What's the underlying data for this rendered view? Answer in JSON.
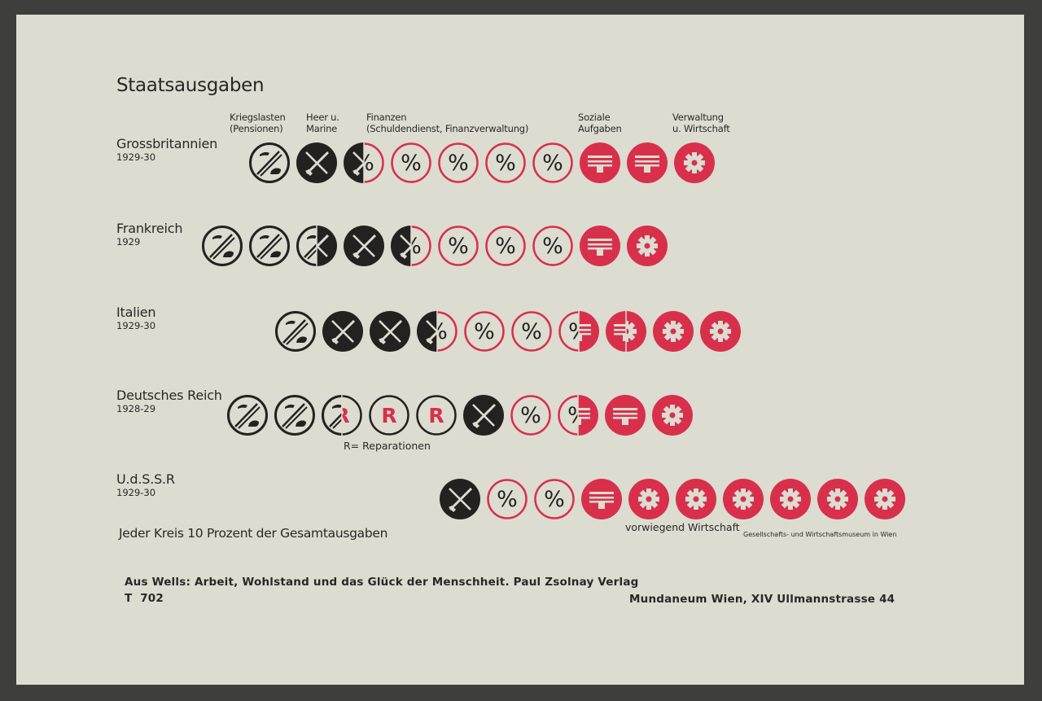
{
  "colors": {
    "black": "#232220",
    "red": "#d8304b",
    "paper": "#dcdcd1"
  },
  "chart_data": {
    "type": "pictogram",
    "title": "Staatsausgaben",
    "unit_note": "Jeder Kreis 10 Prozent der Gesamtausgaben",
    "categories": [
      {
        "key": "pensions",
        "label_1": "Kriegslasten",
        "label_2": "(Pensionen)",
        "icon": "crutch-icon",
        "style": "black-outline"
      },
      {
        "key": "military",
        "label_1": "Heer u.",
        "label_2": "Marine",
        "icon": "crossed-rifle-sabre-icon",
        "style": "black-filled"
      },
      {
        "key": "finance",
        "label_1": "Finanzen",
        "label_2": "(Schuldendienst, Finanzverwaltung)",
        "icon": "percent-icon",
        "style": "red-outline"
      },
      {
        "key": "social",
        "label_1": "Soziale",
        "label_2": "Aufgaben",
        "icon": "building-icon",
        "style": "red-filled"
      },
      {
        "key": "admin",
        "label_1": "Verwaltung",
        "label_2": "u. Wirtschaft",
        "icon": "gear-icon",
        "style": "red-filled"
      },
      {
        "key": "reparations",
        "legend": "R= Reparationen",
        "icon": "letter-r-icon",
        "style": "black-outline-red-R"
      }
    ],
    "rows": [
      {
        "country": "Grossbritannien",
        "period": "1929-30",
        "segments": [
          {
            "category": "pensions",
            "value": 10
          },
          {
            "category": "military",
            "value": 15
          },
          {
            "category": "finance",
            "value": 45
          },
          {
            "category": "social",
            "value": 20
          },
          {
            "category": "admin",
            "value": 10
          }
        ]
      },
      {
        "country": "Frankreich",
        "period": "1929",
        "segments": [
          {
            "category": "pensions",
            "value": 25
          },
          {
            "category": "military",
            "value": 20
          },
          {
            "category": "finance",
            "value": 35
          },
          {
            "category": "social",
            "value": 10
          },
          {
            "category": "admin",
            "value": 10
          }
        ]
      },
      {
        "country": "Italien",
        "period": "1929-30",
        "segments": [
          {
            "category": "pensions",
            "value": 10
          },
          {
            "category": "military",
            "value": 25
          },
          {
            "category": "finance",
            "value": 30
          },
          {
            "category": "social",
            "value": 10
          },
          {
            "category": "admin",
            "value": 25
          }
        ]
      },
      {
        "country": "Deutsches Reich",
        "period": "1928-29",
        "segments": [
          {
            "category": "pensions",
            "value": 25
          },
          {
            "category": "reparations",
            "value": 25
          },
          {
            "category": "military",
            "value": 10
          },
          {
            "category": "finance",
            "value": 15
          },
          {
            "category": "social",
            "value": 15
          },
          {
            "category": "admin",
            "value": 10
          }
        ]
      },
      {
        "country": "U.d.S.S.R",
        "period": "1929-30",
        "segments": [
          {
            "category": "military",
            "value": 10
          },
          {
            "category": "finance",
            "value": 20
          },
          {
            "category": "social",
            "value": 10
          },
          {
            "category": "admin",
            "value": 60
          }
        ],
        "annotation": "vorwiegend Wirtschaft"
      }
    ]
  },
  "reparations_legend": "R= Reparationen",
  "museum": "Gesellschafts- und Wirtschaftsmuseum in Wien",
  "source": "Aus Wells: Arbeit, Wohlstand und das Glück der Menschheit. Paul Zsolnay Verlag",
  "plate": "T  702",
  "address": "Mundaneum Wien, XIV Ullmannstrasse 44"
}
